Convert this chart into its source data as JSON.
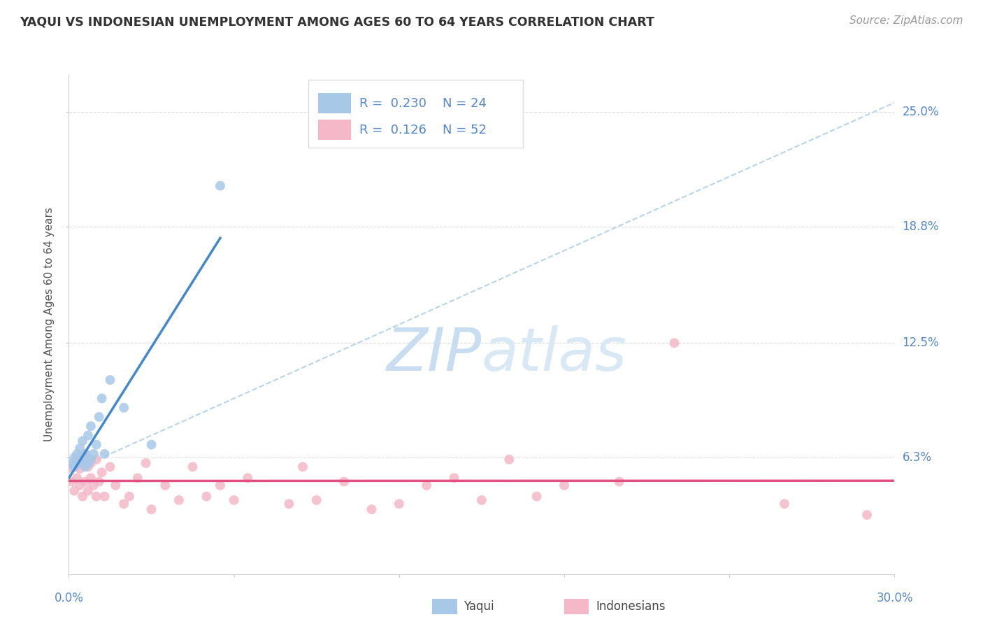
{
  "title": "YAQUI VS INDONESIAN UNEMPLOYMENT AMONG AGES 60 TO 64 YEARS CORRELATION CHART",
  "source": "Source: ZipAtlas.com",
  "ylabel": "Unemployment Among Ages 60 to 64 years",
  "xlim": [
    0.0,
    0.3
  ],
  "ylim": [
    0.0,
    0.27
  ],
  "ytick_labels": [
    "6.3%",
    "12.5%",
    "18.8%",
    "25.0%"
  ],
  "ytick_positions": [
    0.063,
    0.125,
    0.188,
    0.25
  ],
  "yaqui_R": "0.230",
  "yaqui_N": "24",
  "indonesian_R": "0.126",
  "indonesian_N": "52",
  "yaqui_scatter_color": "#a8c8e8",
  "indonesian_scatter_color": "#f4b8c8",
  "trend_yaqui_color": "#4488cc",
  "trend_indonesian_color": "#e05080",
  "trend_dashed_color": "#b8d4e8",
  "grid_color": "#dddddd",
  "background_color": "#ffffff",
  "yaqui_points_x": [
    0.001,
    0.002,
    0.002,
    0.003,
    0.003,
    0.004,
    0.004,
    0.005,
    0.005,
    0.006,
    0.006,
    0.007,
    0.007,
    0.008,
    0.008,
    0.009,
    0.01,
    0.011,
    0.012,
    0.013,
    0.015,
    0.02,
    0.03,
    0.055
  ],
  "yaqui_points_y": [
    0.06,
    0.058,
    0.063,
    0.062,
    0.065,
    0.06,
    0.068,
    0.063,
    0.072,
    0.058,
    0.065,
    0.06,
    0.075,
    0.062,
    0.08,
    0.065,
    0.07,
    0.085,
    0.095,
    0.065,
    0.105,
    0.09,
    0.07,
    0.21
  ],
  "indonesian_points_x": [
    0.001,
    0.001,
    0.002,
    0.002,
    0.003,
    0.003,
    0.004,
    0.004,
    0.005,
    0.005,
    0.006,
    0.006,
    0.007,
    0.007,
    0.008,
    0.008,
    0.009,
    0.01,
    0.01,
    0.011,
    0.012,
    0.013,
    0.015,
    0.017,
    0.02,
    0.022,
    0.025,
    0.028,
    0.03,
    0.035,
    0.04,
    0.045,
    0.05,
    0.055,
    0.06,
    0.065,
    0.08,
    0.085,
    0.09,
    0.1,
    0.11,
    0.12,
    0.13,
    0.14,
    0.15,
    0.16,
    0.17,
    0.18,
    0.2,
    0.22,
    0.26,
    0.29
  ],
  "indonesian_points_y": [
    0.05,
    0.058,
    0.045,
    0.06,
    0.052,
    0.063,
    0.048,
    0.057,
    0.042,
    0.06,
    0.05,
    0.065,
    0.045,
    0.058,
    0.052,
    0.06,
    0.048,
    0.042,
    0.062,
    0.05,
    0.055,
    0.042,
    0.058,
    0.048,
    0.038,
    0.042,
    0.052,
    0.06,
    0.035,
    0.048,
    0.04,
    0.058,
    0.042,
    0.048,
    0.04,
    0.052,
    0.038,
    0.058,
    0.04,
    0.05,
    0.035,
    0.038,
    0.048,
    0.052,
    0.04,
    0.062,
    0.042,
    0.048,
    0.05,
    0.125,
    0.038,
    0.032
  ]
}
